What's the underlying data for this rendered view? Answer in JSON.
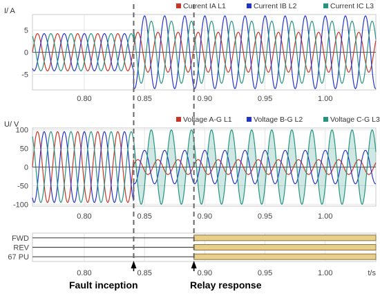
{
  "chart_data": [
    {
      "type": "line",
      "ylabel": "I/ A",
      "ylim": [
        -8.5,
        8.5
      ],
      "yticks": [
        -5,
        0,
        5
      ],
      "xlim": [
        0.757,
        1.042
      ],
      "xticks": [
        0.8,
        0.85,
        0.9,
        0.95,
        1.0
      ],
      "x_tick_labels": [
        "0.80",
        "0.85",
        "0.90",
        "0.95",
        "1.00"
      ],
      "grid": true,
      "legend_position": "top-right",
      "frequency_hz": 60,
      "series": [
        {
          "name": "Current IA L1",
          "color": "#cc3322",
          "prefault_amplitude": 4.2,
          "fault_amplitude": 4.5,
          "phase_deg": 0
        },
        {
          "name": "Current IB L2",
          "color": "#2233cc",
          "prefault_amplitude": 4.2,
          "fault_amplitude": 8.2,
          "phase_deg": -120
        },
        {
          "name": "Current IC L3",
          "color": "#23957f",
          "prefault_amplitude": 4.2,
          "fault_amplitude": 7.0,
          "phase_deg": 120
        }
      ]
    },
    {
      "type": "line",
      "ylabel": "U/ V",
      "ylim": [
        -105,
        105
      ],
      "yticks": [
        -100,
        -50,
        0,
        50,
        100
      ],
      "xlim": [
        0.757,
        1.042
      ],
      "xticks": [
        0.8,
        0.85,
        0.9,
        0.95,
        1.0
      ],
      "x_tick_labels": [
        "0.80",
        "0.85",
        "0.90",
        "0.95",
        "1.00"
      ],
      "grid": true,
      "legend_position": "top-right",
      "frequency_hz": 60,
      "series": [
        {
          "name": "Voltage A-G L1",
          "color": "#cc3322",
          "prefault_amplitude": 95,
          "fault_amplitude": 20,
          "phase_deg": 0
        },
        {
          "name": "Voltage B-G L2",
          "color": "#2233cc",
          "prefault_amplitude": 95,
          "fault_amplitude": 45,
          "phase_deg": -120
        },
        {
          "name": "Voltage C-G L3",
          "color": "#23957f",
          "prefault_amplitude": 95,
          "fault_amplitude": 100,
          "phase_deg": 120,
          "filled_after_fault": true
        }
      ]
    },
    {
      "type": "digital",
      "xlabel": "t/s",
      "xlim": [
        0.757,
        1.042
      ],
      "xticks": [
        0.8,
        0.85,
        0.9,
        0.95,
        1.0
      ],
      "x_tick_labels": [
        "0.80",
        "0.85",
        "0.90",
        "0.95",
        "1.00"
      ],
      "signals": [
        {
          "name": "FWD",
          "active_from": 0.891
        },
        {
          "name": "REV",
          "active_from": 0.891
        },
        {
          "name": "67 PU",
          "active_from": 0.891
        }
      ],
      "active_color": "#e8cf8a"
    }
  ],
  "events": [
    {
      "t": 0.841,
      "label": "Fault inception"
    },
    {
      "t": 0.891,
      "label": "Relay response"
    }
  ]
}
